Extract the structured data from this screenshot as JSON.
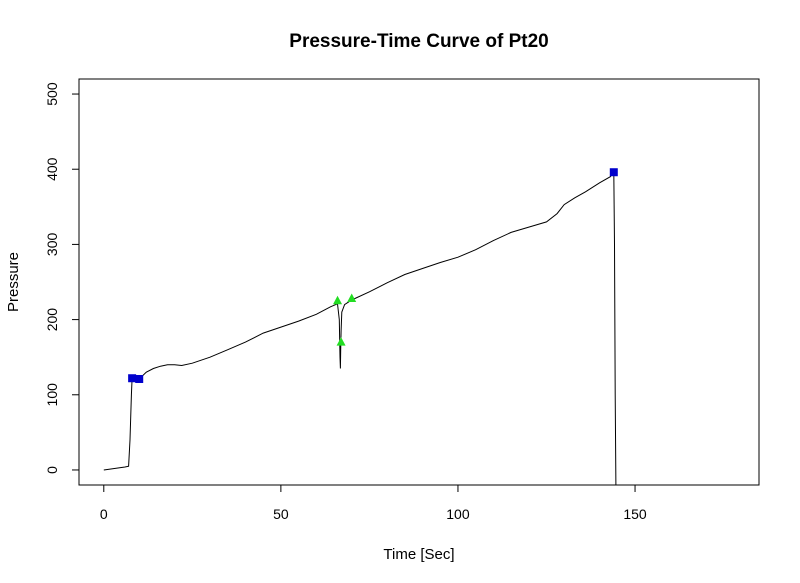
{
  "chart_data": {
    "type": "line",
    "title": "Pressure-Time Curve of Pt20",
    "xlabel": "Time [Sec]",
    "ylabel": "Pressure",
    "xlim": [
      -7,
      185
    ],
    "ylim": [
      -20,
      520
    ],
    "xticks": [
      0,
      50,
      100,
      150
    ],
    "yticks": [
      0,
      100,
      200,
      300,
      400,
      500
    ],
    "grid": false,
    "legend": "none",
    "line_color": "#000000",
    "series": [
      {
        "points": [
          [
            0,
            0
          ],
          [
            3,
            2
          ],
          [
            6,
            4
          ],
          [
            7,
            5
          ],
          [
            7.4,
            40
          ],
          [
            7.8,
            100
          ],
          [
            8,
            122
          ],
          [
            9,
            121
          ],
          [
            10,
            121
          ],
          [
            12,
            130
          ],
          [
            14,
            135
          ],
          [
            16,
            138
          ],
          [
            18,
            140
          ],
          [
            20,
            140
          ],
          [
            22,
            139
          ],
          [
            25,
            142
          ],
          [
            30,
            150
          ],
          [
            35,
            160
          ],
          [
            40,
            170
          ],
          [
            45,
            182
          ],
          [
            50,
            190
          ],
          [
            55,
            198
          ],
          [
            60,
            207
          ],
          [
            64,
            217
          ],
          [
            66,
            221
          ],
          [
            66.5,
            200
          ],
          [
            66.7,
            150
          ],
          [
            66.8,
            135
          ],
          [
            66.9,
            160
          ],
          [
            67,
            185
          ],
          [
            67.2,
            210
          ],
          [
            68,
            220
          ],
          [
            70,
            226
          ],
          [
            75,
            237
          ],
          [
            80,
            249
          ],
          [
            85,
            260
          ],
          [
            90,
            268
          ],
          [
            95,
            276
          ],
          [
            100,
            283
          ],
          [
            105,
            293
          ],
          [
            110,
            305
          ],
          [
            115,
            316
          ],
          [
            120,
            323
          ],
          [
            125,
            330
          ],
          [
            128,
            341
          ],
          [
            130,
            353
          ],
          [
            133,
            362
          ],
          [
            136,
            370
          ],
          [
            140,
            382
          ],
          [
            143,
            390
          ],
          [
            144,
            396
          ],
          [
            144.2,
            300
          ],
          [
            144.4,
            100
          ],
          [
            144.6,
            -20
          ]
        ]
      }
    ],
    "markers": [
      {
        "shape": "square",
        "color": "#0000cc",
        "points": [
          [
            8,
            122
          ],
          [
            10,
            121
          ],
          [
            144,
            396
          ]
        ]
      },
      {
        "shape": "triangle",
        "color": "#22dd22",
        "points": [
          [
            66,
            225
          ],
          [
            67,
            170
          ],
          [
            70,
            228
          ]
        ]
      }
    ]
  }
}
